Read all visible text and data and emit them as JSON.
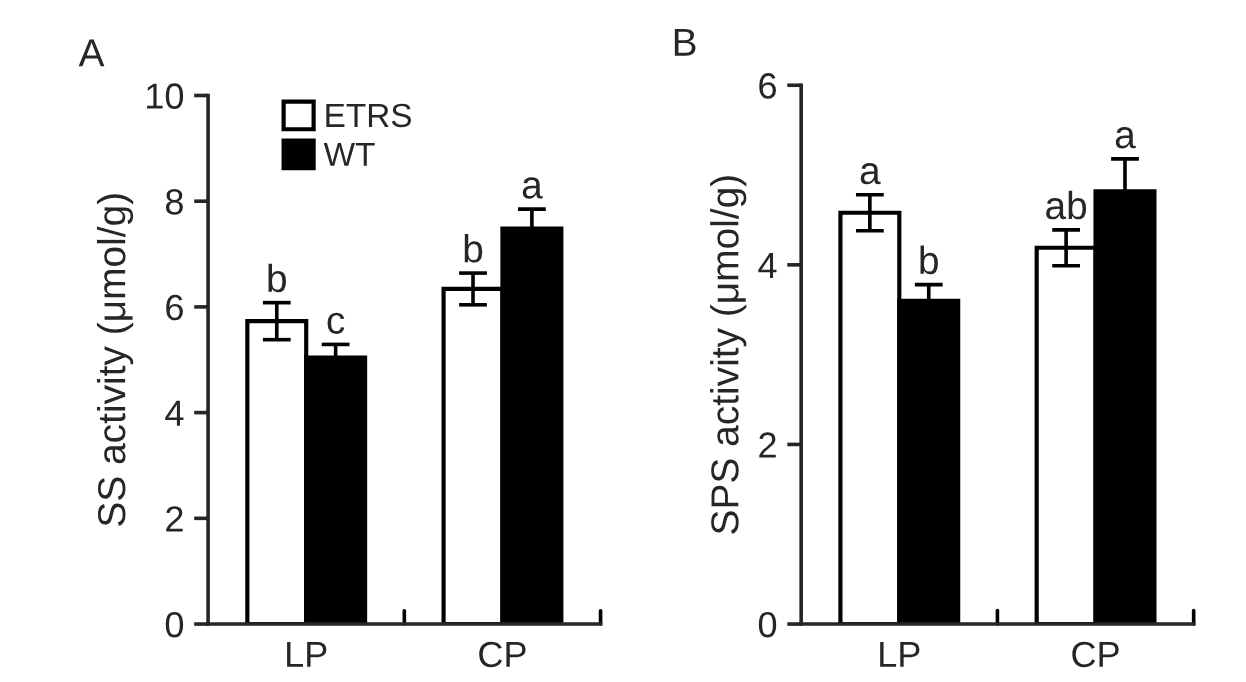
{
  "chart_data": [
    {
      "type": "bar",
      "title": "A",
      "ylabel": "SS activity (μmol/g)",
      "categories": [
        "LP",
        "CP"
      ],
      "series": [
        {
          "name": "ETRS",
          "color": "#ffffff",
          "values": [
            5.73,
            6.34
          ],
          "errors": [
            0.35,
            0.3
          ]
        },
        {
          "name": "WT",
          "color": "#000000",
          "values": [
            5.04,
            7.48
          ],
          "errors": [
            0.25,
            0.37
          ]
        }
      ],
      "ylim": [
        0,
        10
      ],
      "yticks": [
        0,
        2,
        4,
        6,
        8,
        10
      ],
      "legend": "top left",
      "grid": false,
      "annotations": [
        "b",
        "c",
        "b",
        "a"
      ]
    },
    {
      "type": "bar",
      "title": "B",
      "ylabel": "SPS activity (μmol/g)",
      "categories": [
        "LP",
        "CP"
      ],
      "series": [
        {
          "color": "#ffffff",
          "values": [
            4.58,
            4.19
          ],
          "errors": [
            0.2,
            0.2
          ]
        },
        {
          "color": "#000000",
          "values": [
            3.6,
            4.82
          ],
          "errors": [
            0.18,
            0.36
          ]
        }
      ],
      "ylim": [
        0,
        6
      ],
      "yticks": [
        0,
        2,
        4,
        6
      ],
      "legend": false,
      "grid": false,
      "annotations": [
        "a",
        "b",
        "ab",
        "a"
      ]
    }
  ]
}
